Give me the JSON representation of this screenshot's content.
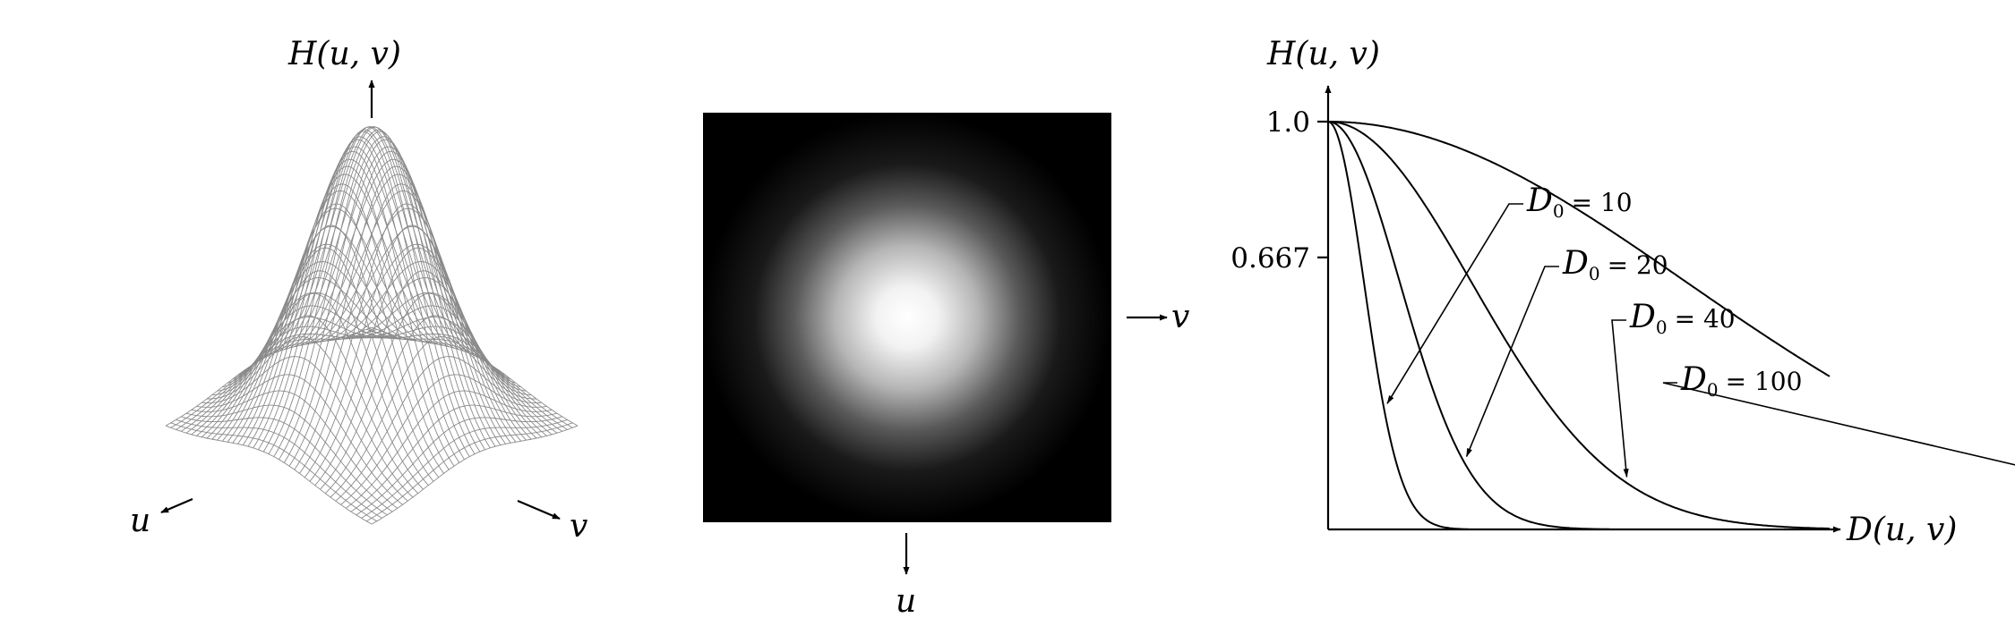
{
  "surface_plot": {
    "z_label": "H(u, v)",
    "x_label": "u",
    "y_label": "v"
  },
  "filter_image": {
    "right_label": "v",
    "down_label": "u"
  },
  "chart_data": {
    "type": "line",
    "xlabel": "D(u, v)",
    "ylabel": "H(u, v)",
    "ylim": [
      0,
      1.0
    ],
    "y_ticks": [
      "1.0",
      "0.667"
    ],
    "y_tick_values": [
      1.0,
      0.667
    ],
    "function": "H = exp(-D^2 / (2 * D0^2))",
    "series": [
      {
        "symbol": "D",
        "subscript": "0",
        "relation": "=",
        "value": "10",
        "d0": 10
      },
      {
        "symbol": "D",
        "subscript": "0",
        "relation": "=",
        "value": "20",
        "d0": 20
      },
      {
        "symbol": "D",
        "subscript": "0",
        "relation": "=",
        "value": "40",
        "d0": 40
      },
      {
        "symbol": "D",
        "subscript": "0",
        "relation": "=",
        "value": "100",
        "d0": 100
      }
    ]
  }
}
